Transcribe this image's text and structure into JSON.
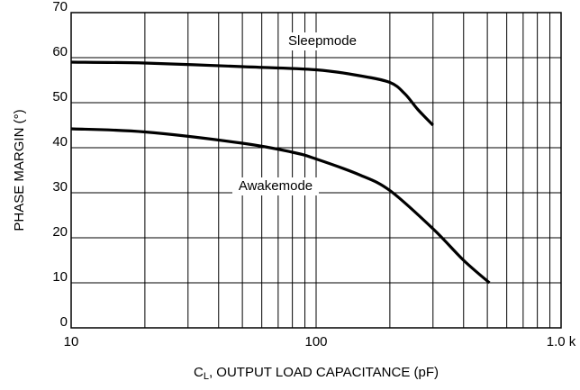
{
  "chart_data": {
    "type": "line",
    "x_label": {
      "main": "C",
      "sub": "L",
      "rest": ", OUTPUT LOAD CAPACITANCE (pF)"
    },
    "y_label": "PHASE MARGIN (°)",
    "log_x": true,
    "grid": true,
    "xlim": [
      10,
      1000
    ],
    "xticks": [
      10,
      100,
      {
        "value": 1000,
        "label": "1.0 k"
      }
    ],
    "ylim": [
      0,
      70
    ],
    "yticks": [
      0,
      10,
      20,
      30,
      40,
      50,
      60,
      70
    ],
    "series": [
      {
        "name": "Sleepmode",
        "color": "#000000",
        "x": [
          10,
          20,
          50,
          100,
          150,
          200,
          230,
          260,
          300
        ],
        "values": [
          59,
          58.8,
          58,
          57.3,
          56,
          54.5,
          52,
          48.5,
          45
        ]
      },
      {
        "name": "Awakemode",
        "color": "#000000",
        "x": [
          10,
          20,
          50,
          80,
          100,
          150,
          200,
          300,
          400,
          510
        ],
        "values": [
          44.2,
          43.5,
          41,
          39,
          37.5,
          34,
          30.5,
          22,
          15,
          10
        ]
      }
    ]
  }
}
